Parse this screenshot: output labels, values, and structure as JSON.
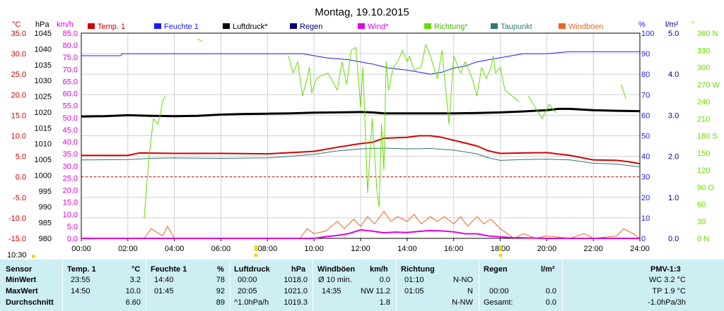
{
  "title": "Montag, 19.10.2015",
  "timestamp": "10:30",
  "colors": {
    "temp": "#d40000",
    "humidity": "#1a1aff",
    "pressure": "#000000",
    "rain": "#000080",
    "wind": "#e000e0",
    "direction": "#66dd00",
    "dewpoint": "#2f7777",
    "gust": "#ee6622",
    "grid": "#d0d0d0",
    "zero_line": "#cc0000",
    "frame": "#000000",
    "panel_bg": "#cdeef3"
  },
  "chart_data": {
    "type": "line",
    "title": "Montag, 19.10.2015",
    "x_ticks": [
      "00:00",
      "02:00",
      "04:00",
      "06:00",
      "08:00",
      "10:00",
      "12:00",
      "14:00",
      "16:00",
      "18:00",
      "20:00",
      "22:00",
      "24:00"
    ],
    "xlim": [
      0,
      24
    ],
    "grid": true,
    "legend_position": "top",
    "legend": [
      "Temp. 1",
      "Feuchte 1",
      "Luftdruck*",
      "Regen",
      "Wind*",
      "Richtung*",
      "Taupunkt",
      "Windböen"
    ],
    "axes": {
      "temp_c": {
        "unit": "°C",
        "range": [
          -15,
          35
        ],
        "ticks": [
          "35.0",
          "30.0",
          "25.0",
          "20.0",
          "15.0",
          "10.0",
          "5.0",
          "0.0",
          "-5.0",
          "-10.0",
          "-15.0"
        ]
      },
      "pressure": {
        "unit": "hPa",
        "range": [
          980,
          1045
        ],
        "ticks": [
          "1045",
          "1040",
          "1035",
          "1030",
          "1025",
          "1020",
          "1015",
          "1010",
          "1005",
          "1000",
          "995",
          "990",
          "985",
          "980"
        ]
      },
      "wind_kmh": {
        "unit": "km/h",
        "range": [
          0,
          85
        ],
        "ticks": [
          "85.0",
          "80.0",
          "75.0",
          "70.0",
          "65.0",
          "60.0",
          "55.0",
          "50.0",
          "45.0",
          "40.0",
          "35.0",
          "30.0",
          "25.0",
          "20.0",
          "15.0",
          "10.0",
          "5.0",
          "0.0"
        ]
      },
      "humidity": {
        "unit": "%",
        "range": [
          0,
          100
        ],
        "ticks": [
          "100",
          "90",
          "80",
          "70",
          "60",
          "50",
          "40",
          "30",
          "20",
          "10",
          "0"
        ]
      },
      "rain": {
        "unit": "l/m²",
        "range": [
          0,
          5
        ],
        "ticks": [
          "5.0",
          "4.0",
          "3.0",
          "2.0",
          "1.0",
          "0.0"
        ]
      },
      "direction": {
        "unit": "°",
        "range": [
          0,
          360
        ],
        "ticks": [
          "360 N",
          "330",
          "300",
          "270 W",
          "240",
          "210",
          "180 S",
          "150",
          "120",
          "90 O",
          "60",
          "30",
          "0 N"
        ]
      }
    },
    "series": [
      {
        "name": "Feuchte 1",
        "axis": "humidity",
        "color": "#1a1aff",
        "width": 1,
        "x": [
          0,
          1.7,
          1.75,
          9.5,
          10.5,
          11.5,
          12.5,
          13.2,
          14,
          14.5,
          15,
          15.5,
          16,
          16.5,
          17,
          17.5,
          18,
          18.5,
          19,
          20,
          21,
          21.5,
          22,
          23,
          24
        ],
        "y": [
          89,
          89,
          90,
          90,
          88,
          87,
          85,
          83,
          82,
          81,
          80,
          81,
          83,
          84,
          86,
          87,
          88,
          89,
          90,
          90,
          91,
          91,
          91,
          91,
          91
        ]
      },
      {
        "name": "Luftdruck*",
        "axis": "pressure",
        "color": "#000000",
        "width": 3,
        "x": [
          0,
          1,
          2,
          3,
          4,
          5,
          6,
          7,
          8,
          9,
          10,
          11,
          12,
          12.5,
          13,
          14,
          15,
          16,
          17,
          18,
          19,
          20,
          20.5,
          21,
          22,
          23,
          24
        ],
        "y": [
          1018.6,
          1018.7,
          1019,
          1018.8,
          1018.7,
          1018.8,
          1019.2,
          1019.4,
          1019.5,
          1019.6,
          1019.8,
          1019.9,
          1020,
          1019.9,
          1019.6,
          1019.6,
          1019.6,
          1019.6,
          1019.7,
          1019.9,
          1020.2,
          1020.6,
          1021,
          1021,
          1020.6,
          1020.4,
          1020.3
        ]
      },
      {
        "name": "Taupunkt",
        "axis": "temp_c",
        "color": "#2f7777",
        "width": 1,
        "x": [
          0,
          2,
          3,
          4,
          6,
          8,
          9,
          10,
          11,
          12,
          13,
          14,
          15,
          16,
          17,
          17.5,
          18,
          19,
          20,
          21,
          22,
          23,
          24
        ],
        "y": [
          4.1,
          4.2,
          4.5,
          4.6,
          4.5,
          4.6,
          5.0,
          5.5,
          6.3,
          6.8,
          7.0,
          6.8,
          6.9,
          6.5,
          5.6,
          4.6,
          4.0,
          4.2,
          4.3,
          4.1,
          3.3,
          3.1,
          2.4
        ]
      },
      {
        "name": "Temp. 1",
        "axis": "temp_c",
        "color": "#d40000",
        "width": 2,
        "x": [
          0,
          2,
          2.5,
          4,
          6,
          8,
          9,
          10,
          11,
          12,
          12.5,
          13,
          14,
          14.5,
          15,
          15.5,
          16,
          17,
          17.5,
          18,
          19,
          20,
          21,
          22,
          23,
          23.5,
          24
        ],
        "y": [
          5.2,
          5.2,
          5.8,
          5.7,
          5.7,
          5.6,
          5.9,
          6.2,
          7.2,
          8.1,
          8.4,
          9.4,
          9.6,
          10.0,
          10.0,
          9.6,
          8.9,
          7.5,
          6.3,
          5.7,
          5.8,
          5.9,
          5.2,
          4.1,
          4.0,
          3.7,
          3.2
        ]
      },
      {
        "name": "Windböen",
        "axis": "wind_kmh",
        "color": "#ee6622",
        "width": 1,
        "x": [
          0,
          2.7,
          3,
          3.5,
          3.7,
          4,
          9.4,
          9.7,
          10,
          10.5,
          11,
          11.3,
          11.7,
          12,
          12.3,
          12.6,
          13,
          13.3,
          13.6,
          14,
          14.3,
          14.6,
          15,
          15.3,
          15.6,
          16,
          16.3,
          16.6,
          17,
          17.3,
          17.6,
          18,
          18.3,
          18.6,
          19,
          19.5,
          20,
          21,
          21.6,
          22,
          23,
          23.3,
          23.7,
          24
        ],
        "y": [
          0,
          0,
          4,
          1,
          5,
          0,
          0,
          4,
          2,
          3,
          7,
          4,
          8,
          5,
          9,
          6,
          11.2,
          7,
          9,
          7,
          10,
          6,
          9,
          7,
          9,
          6,
          9,
          5,
          9,
          6,
          8,
          4,
          2,
          0,
          2,
          0,
          1,
          0,
          2,
          0,
          1,
          4,
          2,
          0
        ]
      },
      {
        "name": "Wind*",
        "axis": "wind_kmh",
        "color": "#e000e0",
        "width": 2,
        "x": [
          0,
          10,
          10.5,
          11,
          11.5,
          12,
          12.5,
          13,
          13.5,
          14,
          14.5,
          15,
          15.5,
          16,
          16.5,
          17,
          17.5,
          18,
          18.5,
          19,
          20,
          24
        ],
        "y": [
          0,
          0,
          0.7,
          1.2,
          2,
          3.5,
          3,
          2.3,
          2.6,
          2.4,
          2.9,
          3.2,
          3.1,
          2.7,
          1.9,
          1.9,
          1.0,
          0.6,
          0.3,
          0.2,
          0,
          0
        ]
      },
      {
        "name": "Richtung*",
        "axis": "direction",
        "color": "#66dd00",
        "width": 1,
        "segments": [
          {
            "x": [
              2.7,
              2.9,
              3.1,
              3.3,
              3.5,
              3.6
            ],
            "y": [
              35,
              140,
              210,
              200,
              240,
              250
            ]
          },
          {
            "x": [
              5.0,
              5.2
            ],
            "y": [
              350,
              345
            ]
          },
          {
            "x": [
              8.9,
              9.1,
              9.3,
              9.5,
              9.7,
              9.8,
              9.9,
              10.1,
              10.3,
              10.6,
              11.0,
              11.2,
              11.4,
              11.6,
              11.8,
              12.0,
              12.1,
              12.3,
              12.5,
              12.7,
              12.8,
              12.9,
              13.0,
              13.1,
              13.2,
              13.4,
              13.6,
              13.8,
              14.0,
              14.1,
              14.3,
              14.6,
              14.8,
              15.0,
              15.3,
              15.5,
              15.8,
              16.0,
              16.3,
              16.5,
              16.8,
              17.0,
              17.2,
              17.4,
              17.6,
              17.7,
              17.8,
              18.0,
              18.2,
              18.5,
              18.8
            ],
            "y": [
              320,
              290,
              310,
              250,
              280,
              300,
              255,
              280,
              285,
              290,
              260,
              310,
              270,
              330,
              335,
              230,
              300,
              80,
              210,
              85,
              55,
              200,
              120,
              310,
              260,
              300,
              310,
              330,
              310,
              320,
              295,
              300,
              340,
              320,
              280,
              330,
              200,
              320,
              290,
              310,
              280,
              250,
              300,
              280,
              300,
              320,
              290,
              300,
              260,
              250,
              240
            ]
          },
          {
            "x": [
              19.2,
              19.5,
              19.8,
              20.1,
              20.4
            ],
            "y": [
              250,
              230,
              210,
              235,
              220
            ]
          },
          {
            "x": [
              23.2,
              23.4
            ],
            "y": [
              270,
              245
            ]
          }
        ]
      }
    ]
  },
  "panel": {
    "headers": {
      "sensor": "Sensor",
      "temp": "Temp. 1",
      "temp_unit": "°C",
      "hum": "Feuchte 1",
      "hum_unit": "%",
      "press": "Luftdruck",
      "press_unit": "hPa",
      "gust": "Windböen",
      "gust_unit": "km/h",
      "dir": "Richtung",
      "rain": "Regen",
      "rain_unit": "l/m²",
      "pmv": "PMV-1:3"
    },
    "rows": [
      {
        "label": "MinWert",
        "t_time": "23:55",
        "t_val": "3.2",
        "h_time": "14:40",
        "h_val": "78",
        "p_time": "00:00",
        "p_val": "1018.0",
        "g_time": "Ø 10 min.",
        "g_val": "0.0",
        "d_time": "01:10",
        "d_val": "N-NO",
        "r_time": "",
        "r_val": "",
        "pmv": "WC 3.2 °C"
      },
      {
        "label": "MaxWert",
        "t_time": "14:50",
        "t_val": "10.0",
        "h_time": "01:45",
        "h_val": "92",
        "p_time": "20:05",
        "p_val": "1021.0",
        "g_time": "14:35",
        "g_val": "NW 11.2",
        "d_time": "01:05",
        "d_val": "N",
        "r_time": "00:00",
        "r_val": "0.0",
        "pmv": "TP 1.9 °C"
      },
      {
        "label": "Durchschnitt",
        "t_time": "",
        "t_val": "6.60",
        "h_time": "",
        "h_val": "89",
        "p_time": "^1.0hPa/h",
        "p_val": "1019.3",
        "g_time": "",
        "g_val": "1.8",
        "d_time": "",
        "d_val": "N-NW",
        "r_time": "Gesamt:",
        "r_val": "0.0",
        "pmv": "-1.0hPa/3h"
      }
    ]
  }
}
